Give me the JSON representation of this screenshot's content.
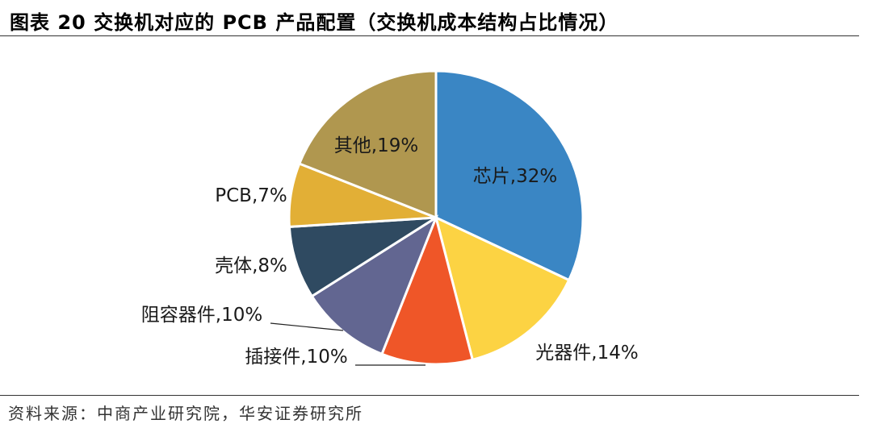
{
  "title": "图表 20 交换机对应的 PCB 产品配置（交换机成本结构占比情况）",
  "source": "资料来源：中商产业研究院，华安证券研究所",
  "chart_data": {
    "type": "pie",
    "title": "",
    "slices": [
      {
        "name": "芯片",
        "value": 32,
        "label": "芯片,32%",
        "color": "#3A86C4"
      },
      {
        "name": "光器件",
        "value": 14,
        "label": "光器件,14%",
        "color": "#FCD343"
      },
      {
        "name": "插接件",
        "value": 10,
        "label": "插接件,10%",
        "color": "#EF5628"
      },
      {
        "name": "阻容器件",
        "value": 10,
        "label": "阻容器件,10%",
        "color": "#626691"
      },
      {
        "name": "壳体",
        "value": 8,
        "label": "壳体,8%",
        "color": "#2F4A61"
      },
      {
        "name": "PCB",
        "value": 7,
        "label": "PCB,7%",
        "color": "#E2AF36"
      },
      {
        "name": "其他",
        "value": 19,
        "label": "其他,19%",
        "color": "#B0974F"
      }
    ]
  }
}
